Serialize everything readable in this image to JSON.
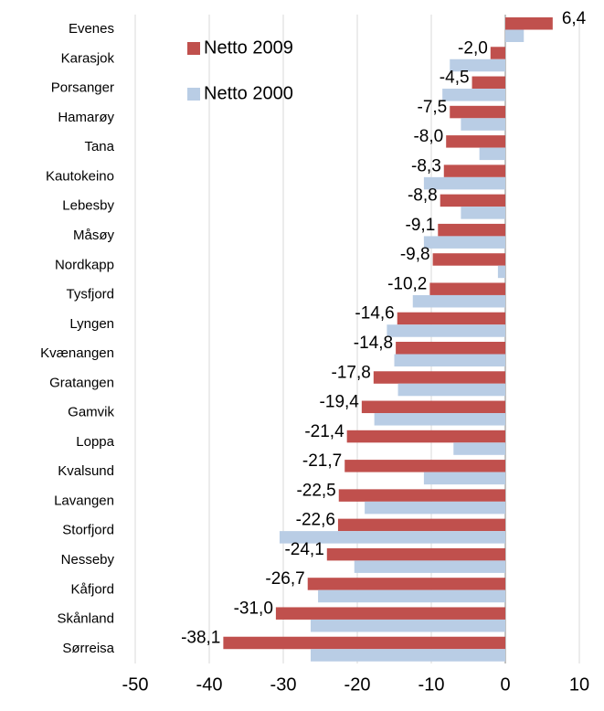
{
  "chart_data": {
    "type": "hbar",
    "categories": [
      "Evenes",
      "Karasjok",
      "Porsanger",
      "Hamarøy",
      "Tana",
      "Kautokeino",
      "Lebesby",
      "Måsøy",
      "Nordkapp",
      "Tysfjord",
      "Lyngen",
      "Kvænangen",
      "Gratangen",
      "Gamvik",
      "Loppa",
      "Kvalsund",
      "Lavangen",
      "Storfjord",
      "Nesseby",
      "Kåfjord",
      "Skånland",
      "Sørreisa"
    ],
    "series": [
      {
        "name": "Netto 2009",
        "color": "#c0504d",
        "values": [
          6.4,
          -2.0,
          -4.5,
          -7.5,
          -8.0,
          -8.3,
          -8.8,
          -9.1,
          -9.8,
          -10.2,
          -14.6,
          -14.8,
          -17.8,
          -19.4,
          -21.4,
          -21.7,
          -22.5,
          -22.6,
          -24.1,
          -26.7,
          -31.0,
          -38.1
        ],
        "value_labels": [
          "6,4",
          "-2,0",
          "-4,5",
          "-7,5",
          "-8,0",
          "-8,3",
          "-8,8",
          "-9,1",
          "-9,8",
          "-10,2",
          "-14,6",
          "-14,8",
          "-17,8",
          "-19,4",
          "-21,4",
          "-21,7",
          "-22,5",
          "-22,6",
          "-24,1",
          "-26,7",
          "-31,0",
          "-38,1"
        ]
      },
      {
        "name": "Netto 2000",
        "color": "#b9cde5",
        "values": [
          2.5,
          -7.5,
          -8.5,
          -6,
          -3.5,
          -11,
          -6,
          -11,
          -1,
          -12.5,
          -16,
          -15,
          -14.5,
          -17.7,
          -7,
          -11,
          -19,
          -30.5,
          -20.4,
          -25.3,
          -26.3,
          -26.3
        ]
      }
    ],
    "xlim": [
      -50,
      10
    ],
    "xticks": [
      -50,
      -40,
      -30,
      -20,
      -10,
      0,
      10
    ],
    "grid": true,
    "legend": "top-left"
  }
}
